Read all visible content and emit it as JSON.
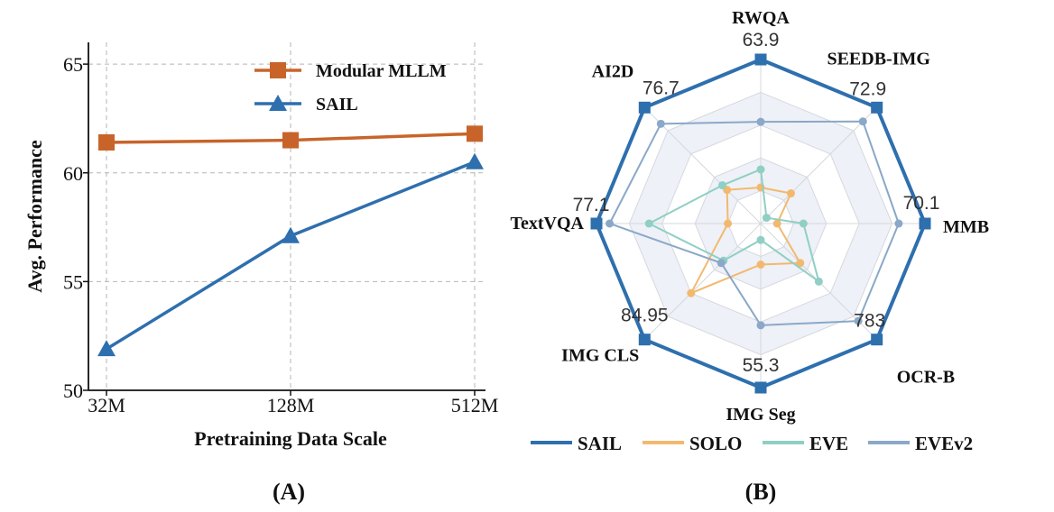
{
  "chart_data": [
    {
      "type": "line",
      "panel_label": "(A)",
      "xlabel": "Pretraining Data Scale",
      "ylabel": "Avg. Performance",
      "x_categories": [
        "32M",
        "128M",
        "512M"
      ],
      "ylim": [
        50,
        66
      ],
      "yticks": [
        "50",
        "55",
        "60",
        "65"
      ],
      "grid": true,
      "legend_position": "top-right",
      "series": [
        {
          "name": "Modular MLLM",
          "marker": "square",
          "color": "#c8642a",
          "values": [
            61.4,
            61.5,
            61.8
          ]
        },
        {
          "name": "SAIL",
          "marker": "triangle",
          "color": "#2e6fae",
          "values": [
            51.9,
            57.1,
            60.5
          ]
        }
      ]
    },
    {
      "type": "radar",
      "panel_label": "(B)",
      "axes": [
        {
          "label": "RWQA",
          "max_label": "63.9"
        },
        {
          "label": "SEEDB-IMG",
          "max_label": "72.9"
        },
        {
          "label": "MMB",
          "max_label": "70.1"
        },
        {
          "label": "OCR-B",
          "max_label": "783"
        },
        {
          "label": "IMG Seg",
          "max_label": "55.3"
        },
        {
          "label": "IMG CLS",
          "max_label": "84.95"
        },
        {
          "label": "TextVQA",
          "max_label": "77.1"
        },
        {
          "label": "AI2D",
          "max_label": "76.7"
        }
      ],
      "legend_position": "bottom",
      "series": [
        {
          "name": "SAIL",
          "color": "#2e6fae",
          "values": [
            1.0,
            1.0,
            1.0,
            1.0,
            1.0,
            1.0,
            1.0,
            1.0
          ]
        },
        {
          "name": "SOLO",
          "color": "#f2b96e",
          "values": [
            0.22,
            0.26,
            0.1,
            0.34,
            0.25,
            0.6,
            0.2,
            0.29
          ]
        },
        {
          "name": "EVE",
          "color": "#8fcfc4",
          "values": [
            0.33,
            0.05,
            0.26,
            0.5,
            0.1,
            0.32,
            0.68,
            0.33
          ]
        },
        {
          "name": "EVEv2",
          "color": "#8aa8c8",
          "values": [
            0.62,
            0.88,
            0.84,
            0.84,
            0.62,
            0.34,
            0.92,
            0.86
          ]
        }
      ]
    }
  ]
}
